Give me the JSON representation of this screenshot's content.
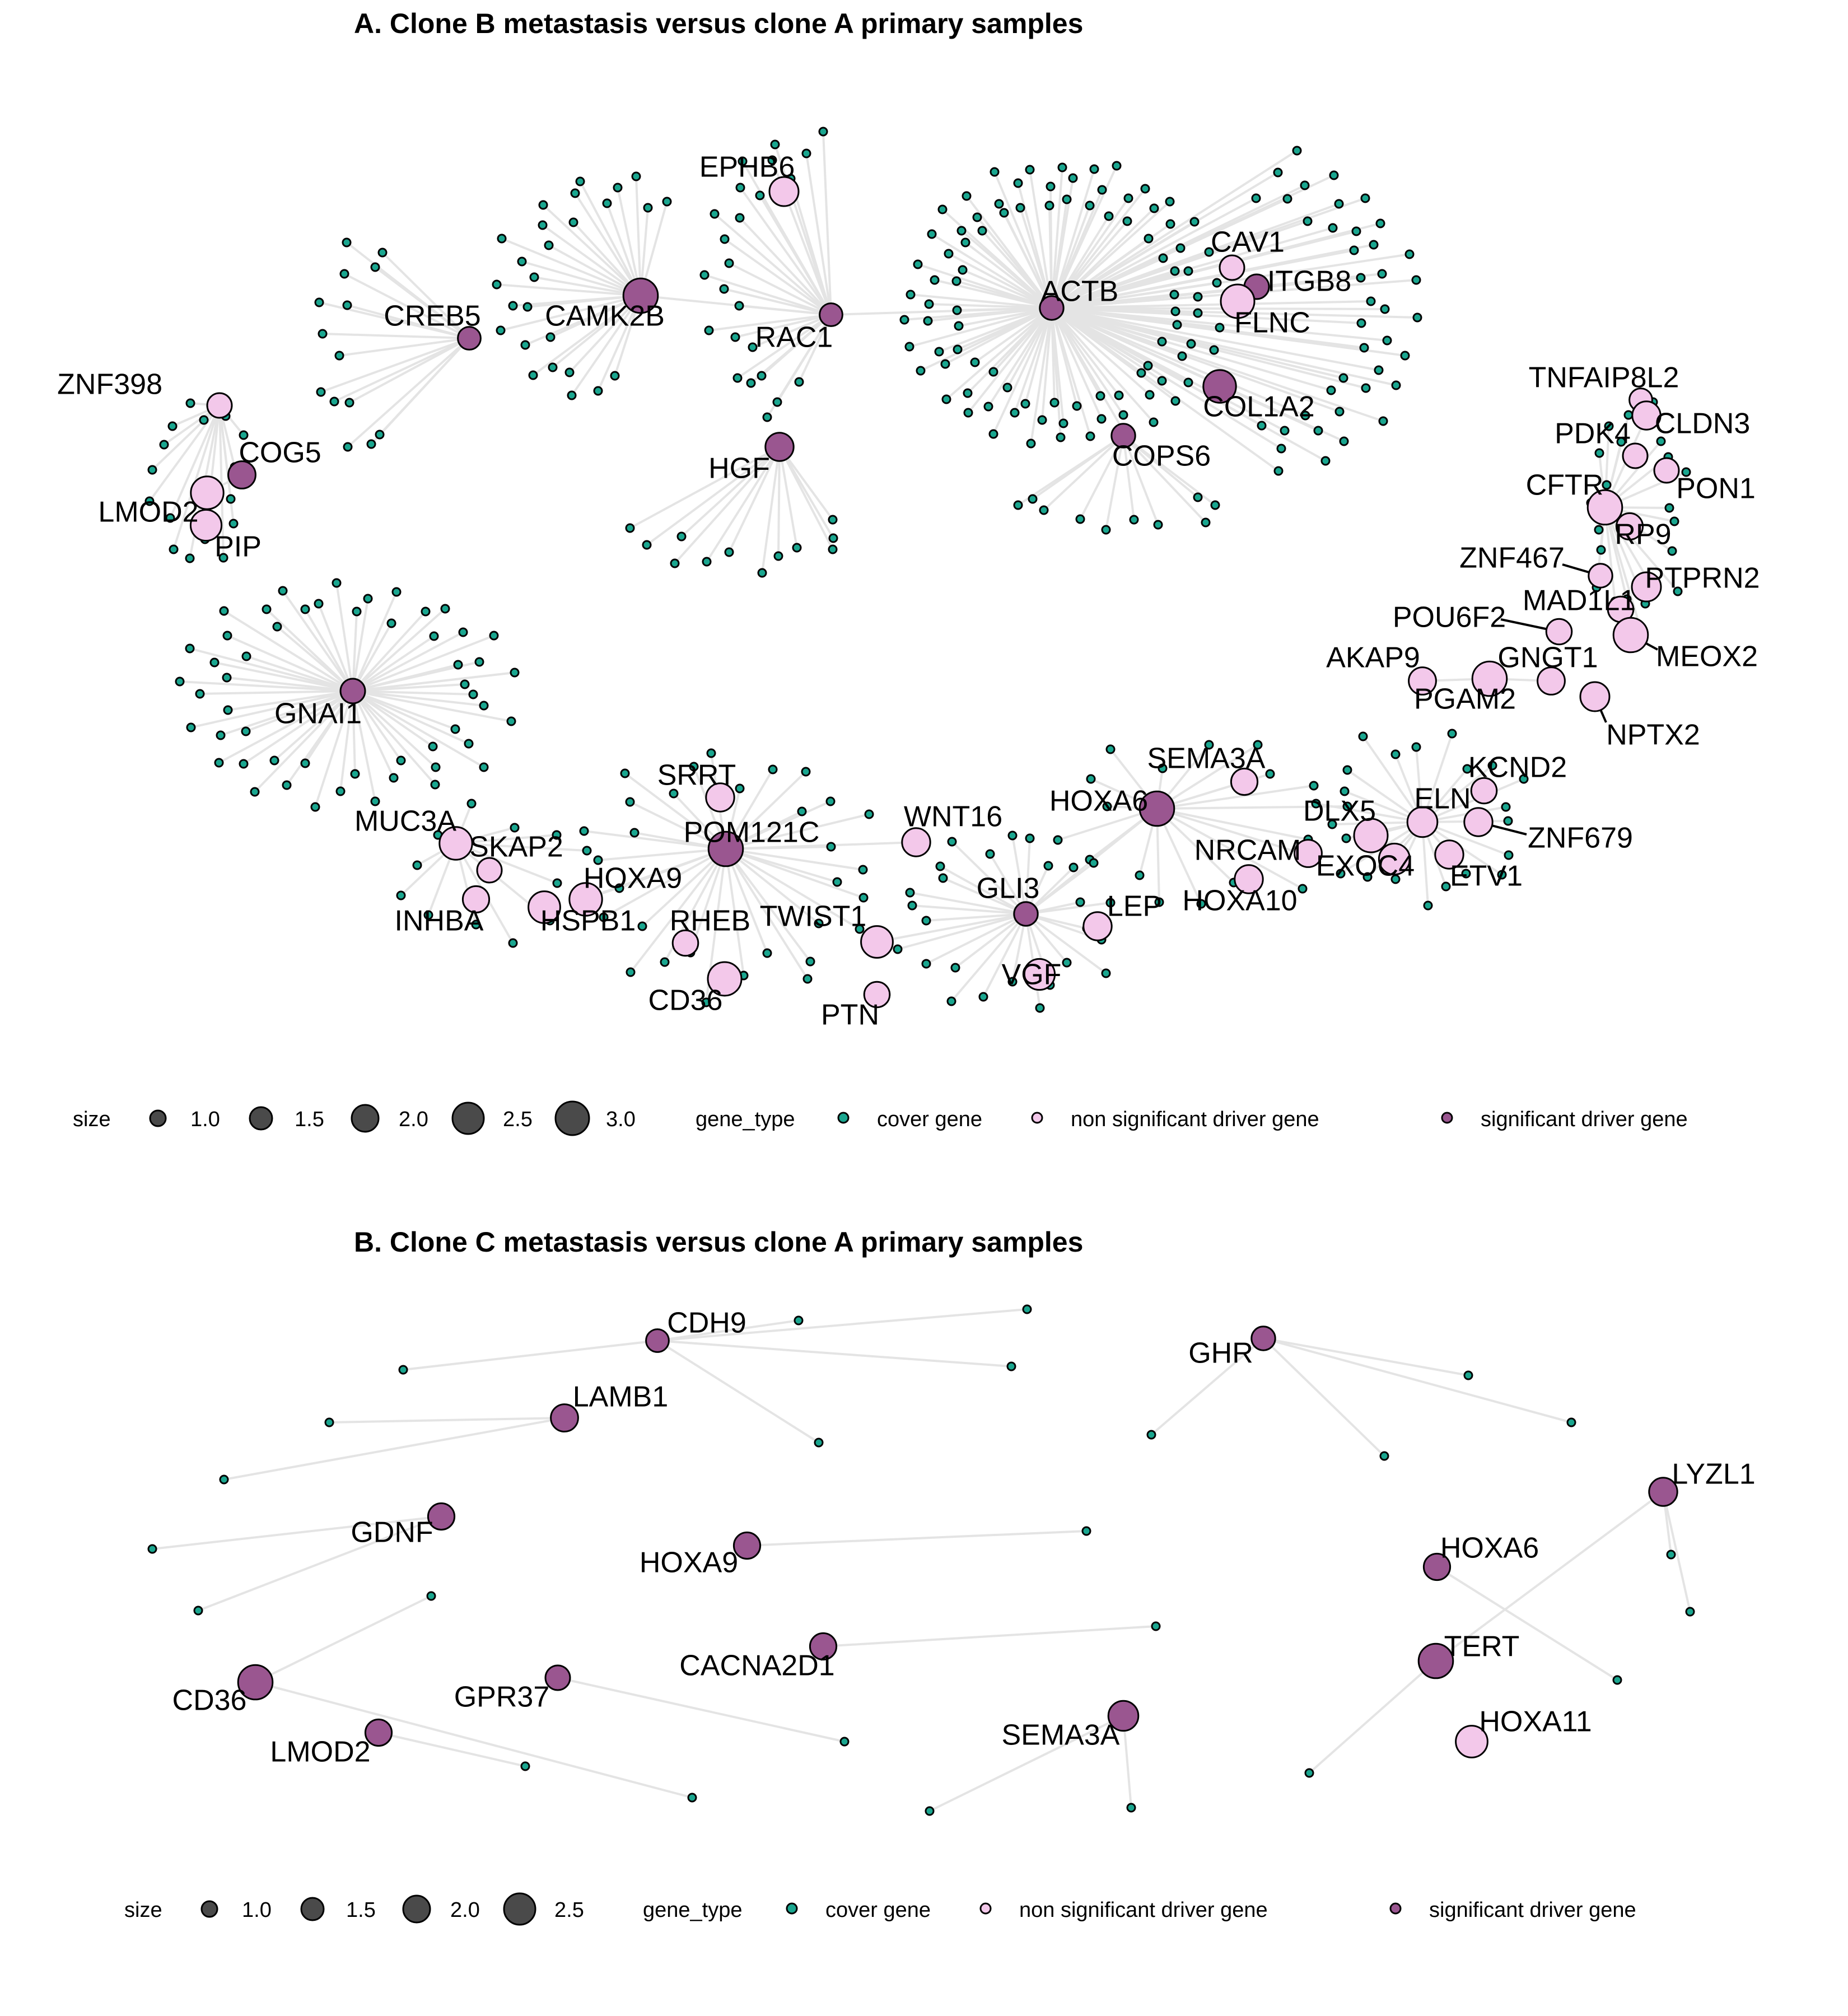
{
  "colors": {
    "cover gene": "#1aa68f",
    "non significant driver gene": "#f3c8ea",
    "significant driver gene": "#9a5690",
    "edge": "#e4e4e4",
    "outline": "#000000"
  },
  "panelA": {
    "title": "A.  Clone B metastasis versus clone A primary samples",
    "legend": {
      "size_title": "size",
      "sizes": [
        "1.0",
        "1.5",
        "2.0",
        "2.5",
        "3.0"
      ],
      "type_title": "gene_type",
      "types": [
        "cover gene",
        "non significant driver gene",
        "significant driver gene"
      ]
    },
    "nodes": [
      {
        "label": "ZNF398",
        "type": "non significant driver gene",
        "size": 1.5
      },
      {
        "label": "COG5",
        "type": "significant driver gene",
        "size": 1.8
      },
      {
        "label": "LMOD2",
        "type": "non significant driver gene",
        "size": 2.4
      },
      {
        "label": "PIP",
        "type": "non significant driver gene",
        "size": 2.2
      },
      {
        "label": "CREB5",
        "type": "significant driver gene",
        "size": 1.3
      },
      {
        "label": "CAMK2B",
        "type": "significant driver gene",
        "size": 2.6
      },
      {
        "label": "EPHB6",
        "type": "non significant driver gene",
        "size": 2.0
      },
      {
        "label": "RAC1",
        "type": "significant driver gene",
        "size": 1.3
      },
      {
        "label": "HGF",
        "type": "significant driver gene",
        "size": 1.9
      },
      {
        "label": "ACTB",
        "type": "significant driver gene",
        "size": 1.4
      },
      {
        "label": "CAV1",
        "type": "non significant driver gene",
        "size": 1.5
      },
      {
        "label": "ITGB8",
        "type": "significant driver gene",
        "size": 1.5
      },
      {
        "label": "FLNC",
        "type": "non significant driver gene",
        "size": 2.5
      },
      {
        "label": "COL1A2",
        "type": "significant driver gene",
        "size": 2.4
      },
      {
        "label": "COPS6",
        "type": "significant driver gene",
        "size": 1.4
      },
      {
        "label": "GNAI1",
        "type": "significant driver gene",
        "size": 1.5
      },
      {
        "label": "TNFAIP8L2",
        "type": "non significant driver gene",
        "size": 1.3
      },
      {
        "label": "CLDN3",
        "type": "non significant driver gene",
        "size": 1.9
      },
      {
        "label": "PDK4",
        "type": "non significant driver gene",
        "size": 1.5
      },
      {
        "label": "PON1",
        "type": "non significant driver gene",
        "size": 1.5
      },
      {
        "label": "CFTR",
        "type": "non significant driver gene",
        "size": 2.6
      },
      {
        "label": "RP9",
        "type": "non significant driver gene",
        "size": 1.7
      },
      {
        "label": "ZNF467",
        "type": "non significant driver gene",
        "size": 1.4
      },
      {
        "label": "PTPRN2",
        "type": "non significant driver gene",
        "size": 2.0
      },
      {
        "label": "MAD1L1",
        "type": "non significant driver gene",
        "size": 1.6
      },
      {
        "label": "POU6F2",
        "type": "non significant driver gene",
        "size": 1.6
      },
      {
        "label": "MEOX2",
        "type": "non significant driver gene",
        "size": 2.6
      },
      {
        "label": "AKAP9",
        "type": "non significant driver gene",
        "size": 1.8
      },
      {
        "label": "GNGT1",
        "type": "non significant driver gene",
        "size": 1.8
      },
      {
        "label": "PGAM2",
        "type": "non significant driver gene",
        "size": 2.6
      },
      {
        "label": "NPTX2",
        "type": "non significant driver gene",
        "size": 2.0
      },
      {
        "label": "SEMA3A",
        "type": "non significant driver gene",
        "size": 1.7
      },
      {
        "label": "HOXA6",
        "type": "significant driver gene",
        "size": 2.6
      },
      {
        "label": "KCND2",
        "type": "non significant driver gene",
        "size": 1.6
      },
      {
        "label": "DLX5",
        "type": "non significant driver gene",
        "size": 2.5
      },
      {
        "label": "ELN",
        "type": "non significant driver gene",
        "size": 2.1
      },
      {
        "label": "ZNF679",
        "type": "non significant driver gene",
        "size": 1.9
      },
      {
        "label": "NRCAM",
        "type": "non significant driver gene",
        "size": 1.8
      },
      {
        "label": "EXOC4",
        "type": "non significant driver gene",
        "size": 2.2
      },
      {
        "label": "ETV1",
        "type": "non significant driver gene",
        "size": 1.9
      },
      {
        "label": "HOXA10",
        "type": "non significant driver gene",
        "size": 1.9
      },
      {
        "label": "WNT16",
        "type": "non significant driver gene",
        "size": 1.9
      },
      {
        "label": "GLI3",
        "type": "significant driver gene",
        "size": 1.4
      },
      {
        "label": "LEP",
        "type": "non significant driver gene",
        "size": 1.9
      },
      {
        "label": "VGF",
        "type": "non significant driver gene",
        "size": 2.2
      },
      {
        "label": "SRRT",
        "type": "non significant driver gene",
        "size": 1.9
      },
      {
        "label": "POM121C",
        "type": "significant driver gene",
        "size": 2.6
      },
      {
        "label": "TWIST1",
        "type": "non significant driver gene",
        "size": 2.3
      },
      {
        "label": "PTN",
        "type": "non significant driver gene",
        "size": 1.6
      },
      {
        "label": "RHEB",
        "type": "non significant driver gene",
        "size": 1.6
      },
      {
        "label": "CD36",
        "type": "non significant driver gene",
        "size": 2.5
      },
      {
        "label": "MUC3A",
        "type": "non significant driver gene",
        "size": 2.4
      },
      {
        "label": "SKAP2",
        "type": "non significant driver gene",
        "size": 1.5
      },
      {
        "label": "INHBA",
        "type": "non significant driver gene",
        "size": 1.7
      },
      {
        "label": "HOXA9",
        "type": "non significant driver gene",
        "size": 2.4
      },
      {
        "label": "HSPB1",
        "type": "non significant driver gene",
        "size": 2.3
      }
    ]
  },
  "panelB": {
    "title": "B.  Clone C metastasis versus clone A primary samples",
    "legend": {
      "size_title": "size",
      "sizes": [
        "1.0",
        "1.5",
        "2.0",
        "2.5"
      ],
      "type_title": "gene_type",
      "types": [
        "cover gene",
        "non significant driver gene",
        "significant driver gene"
      ]
    },
    "nodes": [
      {
        "label": "CDH9",
        "type": "significant driver gene",
        "size": 1.3
      },
      {
        "label": "LAMB1",
        "type": "significant driver gene",
        "size": 1.8
      },
      {
        "label": "GDNF",
        "type": "significant driver gene",
        "size": 1.7
      },
      {
        "label": "HOXA9",
        "type": "significant driver gene",
        "size": 1.7
      },
      {
        "label": "CACNA2D1",
        "type": "significant driver gene",
        "size": 1.7
      },
      {
        "label": "GPR37",
        "type": "significant driver gene",
        "size": 1.5
      },
      {
        "label": "CD36",
        "type": "significant driver gene",
        "size": 2.6
      },
      {
        "label": "LMOD2",
        "type": "significant driver gene",
        "size": 1.7
      },
      {
        "label": "SEMA3A",
        "type": "significant driver gene",
        "size": 2.1
      },
      {
        "label": "GHR",
        "type": "significant driver gene",
        "size": 1.4
      },
      {
        "label": "LYZL1",
        "type": "significant driver gene",
        "size": 1.9
      },
      {
        "label": "HOXA6",
        "type": "significant driver gene",
        "size": 1.7
      },
      {
        "label": "TERT",
        "type": "significant driver gene",
        "size": 2.6
      },
      {
        "label": "HOXA11",
        "type": "non significant driver gene",
        "size": 2.3
      }
    ]
  }
}
